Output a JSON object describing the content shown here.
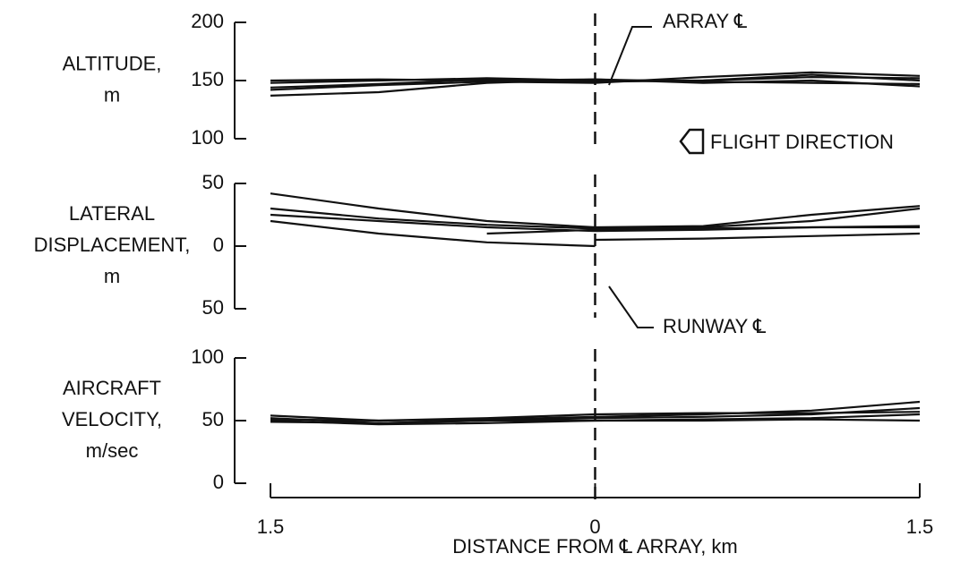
{
  "chart_data": [
    {
      "type": "line",
      "y_label": [
        "ALTITUDE,",
        "m"
      ],
      "ylim": [
        100,
        200
      ],
      "yticks": [
        100,
        150,
        200
      ],
      "xlim": [
        -1.5,
        1.5
      ],
      "vline": 0,
      "color": "#111",
      "x": [
        -1.5,
        -1.0,
        -0.5,
        0,
        0.5,
        1.0,
        1.5
      ],
      "series": [
        {
          "values": [
            148,
            150,
            152,
            150,
            150,
            153,
            152
          ]
        },
        {
          "values": [
            144,
            147,
            151,
            149,
            150,
            155,
            150
          ]
        },
        {
          "values": [
            137,
            140,
            148,
            151,
            148,
            150,
            145
          ]
        },
        {
          "values": [
            142,
            146,
            149,
            148,
            153,
            157,
            154
          ]
        },
        {
          "values": [
            150,
            151,
            150,
            151,
            149,
            148,
            147
          ]
        }
      ],
      "annotations": [
        "ARRAY ℄",
        "FLIGHT DIRECTION"
      ]
    },
    {
      "type": "line",
      "y_label": [
        "LATERAL",
        "DISPLACEMENT,",
        "m"
      ],
      "ylim": [
        -50,
        50
      ],
      "yticks": [
        {
          "value": -50,
          "label": "50"
        },
        0,
        50
      ],
      "xlim": [
        -1.5,
        1.5
      ],
      "vline": 0,
      "color": "#111",
      "x": [
        -1.5,
        -1.0,
        -0.5,
        0,
        0.5,
        1.0,
        1.5
      ],
      "series": [
        {
          "values": [
            42,
            30,
            20,
            15,
            16,
            25,
            32
          ]
        },
        {
          "values": [
            30,
            22,
            17,
            14,
            15,
            20,
            30
          ]
        },
        {
          "values": [
            25,
            20,
            15,
            12,
            13,
            15,
            16
          ]
        },
        {
          "values": [
            20,
            10,
            3,
            0,
            null,
            null,
            null
          ]
        },
        {
          "values": [
            null,
            null,
            null,
            5,
            6,
            8,
            10
          ]
        },
        {
          "values": [
            null,
            null,
            10,
            13,
            14,
            15,
            15
          ]
        }
      ],
      "annotations": [
        "RUNWAY ℄"
      ]
    },
    {
      "type": "line",
      "y_label": [
        "AIRCRAFT",
        "VELOCITY,",
        "m/sec"
      ],
      "ylim": [
        0,
        100
      ],
      "yticks": [
        0,
        50,
        100
      ],
      "xlim": [
        -1.5,
        1.5
      ],
      "vline": 0,
      "color": "#111",
      "xticks": [
        {
          "value": -1.5,
          "label": "1.5"
        },
        0,
        1.5
      ],
      "x_label": "DISTANCE FROM ℄ ARRAY,  km",
      "x": [
        -1.5,
        -1.0,
        -0.5,
        0,
        0.5,
        1.0,
        1.5
      ],
      "series": [
        {
          "values": [
            54,
            50,
            51,
            53,
            55,
            58,
            65
          ]
        },
        {
          "values": [
            52,
            48,
            50,
            52,
            53,
            55,
            60
          ]
        },
        {
          "values": [
            50,
            47,
            48,
            50,
            51,
            52,
            55
          ]
        },
        {
          "values": [
            49,
            48,
            50,
            50,
            50,
            51,
            50
          ]
        },
        {
          "values": [
            51,
            50,
            52,
            55,
            56,
            56,
            57
          ]
        }
      ]
    }
  ]
}
